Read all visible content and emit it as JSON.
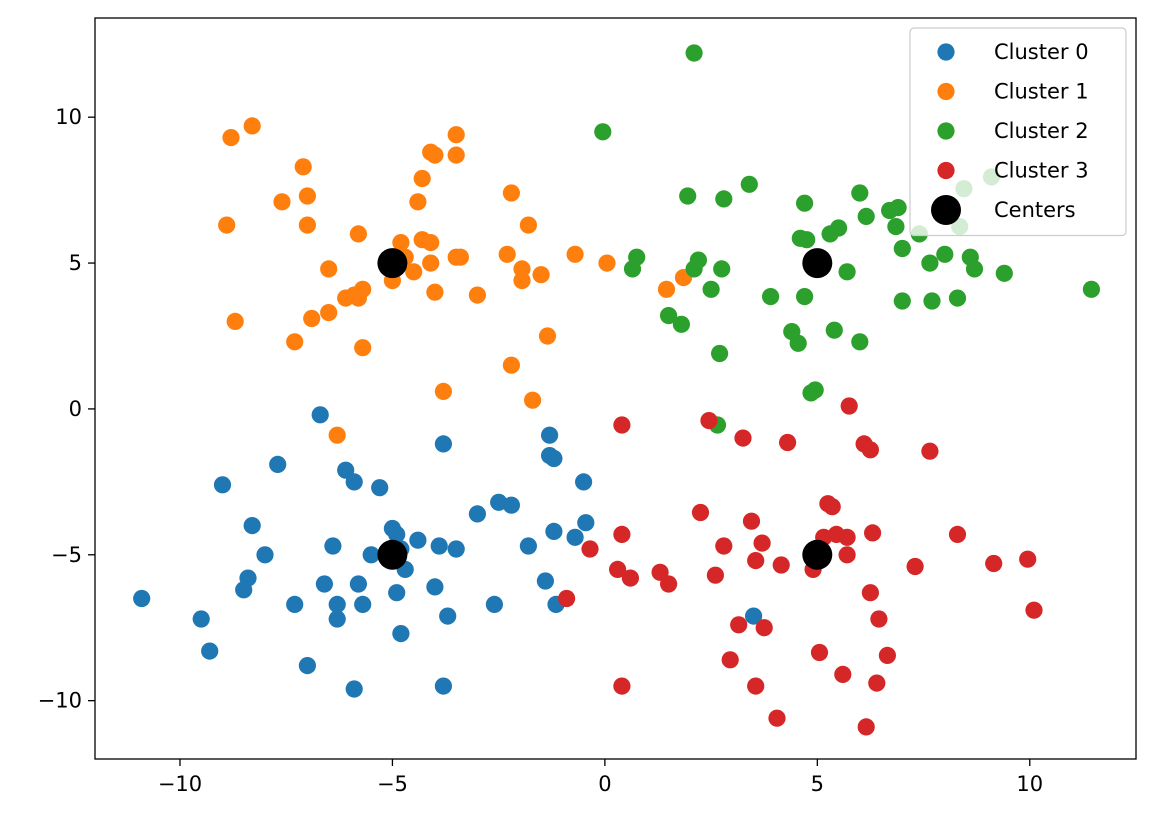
{
  "chart_data": {
    "type": "scatter",
    "title": "",
    "xlabel": "",
    "ylabel": "",
    "xlim": [
      -12.0,
      12.5
    ],
    "ylim": [
      -12.0,
      13.4
    ],
    "xticks": [
      -10,
      -5,
      0,
      5,
      10
    ],
    "yticks": [
      -10,
      -5,
      0,
      5,
      10
    ],
    "xtick_labels": [
      "−10",
      "−5",
      "0",
      "5",
      "10"
    ],
    "ytick_labels": [
      "−10",
      "−5",
      "0",
      "5",
      "10"
    ],
    "grid": false,
    "legend_position": "upper right",
    "series": [
      {
        "name": "Cluster 0",
        "color": "#1f77b4",
        "points": [
          [
            -10.9,
            -6.5
          ],
          [
            -9.5,
            -7.2
          ],
          [
            -9.3,
            -8.3
          ],
          [
            -9.0,
            -2.6
          ],
          [
            -8.3,
            -4.0
          ],
          [
            -8.0,
            -5.0
          ],
          [
            -8.4,
            -5.8
          ],
          [
            -8.5,
            -6.2
          ],
          [
            -7.7,
            -1.9
          ],
          [
            -7.3,
            -6.7
          ],
          [
            -7.0,
            -8.8
          ],
          [
            -6.7,
            -0.2
          ],
          [
            -6.6,
            -6.0
          ],
          [
            -6.4,
            -4.7
          ],
          [
            -6.3,
            -6.7
          ],
          [
            -6.3,
            -7.2
          ],
          [
            -6.1,
            -2.1
          ],
          [
            -5.9,
            -2.5
          ],
          [
            -5.8,
            -6.0
          ],
          [
            -5.7,
            -6.7
          ],
          [
            -5.5,
            -5.0
          ],
          [
            -5.9,
            -9.6
          ],
          [
            -5.3,
            -2.7
          ],
          [
            -5.0,
            -4.1
          ],
          [
            -4.9,
            -4.3
          ],
          [
            -4.8,
            -4.8
          ],
          [
            -4.9,
            -6.3
          ],
          [
            -4.8,
            -7.7
          ],
          [
            -4.7,
            -5.5
          ],
          [
            -4.4,
            -4.5
          ],
          [
            -4.0,
            -6.1
          ],
          [
            -3.9,
            -4.7
          ],
          [
            -3.8,
            -1.2
          ],
          [
            -3.7,
            -7.1
          ],
          [
            -3.8,
            -9.5
          ],
          [
            -3.5,
            -4.8
          ],
          [
            -3.0,
            -3.6
          ],
          [
            -2.6,
            -6.7
          ],
          [
            -2.5,
            -3.2
          ],
          [
            -2.2,
            -3.3
          ],
          [
            -1.8,
            -4.7
          ],
          [
            -1.4,
            -5.9
          ],
          [
            -1.3,
            -0.9
          ],
          [
            -1.3,
            -1.6
          ],
          [
            -1.2,
            -1.7
          ],
          [
            -1.2,
            -4.2
          ],
          [
            -1.15,
            -6.7
          ],
          [
            -0.7,
            -4.4
          ],
          [
            -0.5,
            -2.5
          ],
          [
            -0.45,
            -3.9
          ],
          [
            3.5,
            -7.1
          ]
        ]
      },
      {
        "name": "Cluster 1",
        "color": "#ff7f0e",
        "points": [
          [
            -8.9,
            6.3
          ],
          [
            -8.8,
            9.3
          ],
          [
            -8.7,
            3.0
          ],
          [
            -8.3,
            9.7
          ],
          [
            -7.6,
            7.1
          ],
          [
            -7.3,
            2.3
          ],
          [
            -7.1,
            8.3
          ],
          [
            -7.0,
            7.3
          ],
          [
            -7.0,
            6.3
          ],
          [
            -6.9,
            3.1
          ],
          [
            -6.5,
            4.8
          ],
          [
            -6.5,
            3.3
          ],
          [
            -6.3,
            -0.9
          ],
          [
            -6.1,
            3.8
          ],
          [
            -5.9,
            3.9
          ],
          [
            -5.8,
            3.8
          ],
          [
            -5.8,
            6.0
          ],
          [
            -5.7,
            4.1
          ],
          [
            -5.7,
            2.1
          ],
          [
            -5.0,
            4.4
          ],
          [
            -4.8,
            5.7
          ],
          [
            -4.7,
            5.2
          ],
          [
            -4.5,
            4.7
          ],
          [
            -4.4,
            7.1
          ],
          [
            -4.3,
            7.9
          ],
          [
            -4.3,
            5.8
          ],
          [
            -4.1,
            5.7
          ],
          [
            -4.1,
            5.0
          ],
          [
            -4.1,
            8.8
          ],
          [
            -4.0,
            8.7
          ],
          [
            -4.0,
            4.0
          ],
          [
            -3.8,
            0.6
          ],
          [
            -3.5,
            9.4
          ],
          [
            -3.5,
            8.7
          ],
          [
            -3.5,
            5.2
          ],
          [
            -3.4,
            5.2
          ],
          [
            -3.0,
            3.9
          ],
          [
            -2.3,
            5.3
          ],
          [
            -2.2,
            7.4
          ],
          [
            -2.2,
            1.5
          ],
          [
            -1.95,
            4.8
          ],
          [
            -1.95,
            4.4
          ],
          [
            -1.8,
            6.3
          ],
          [
            -1.7,
            0.3
          ],
          [
            -1.5,
            4.6
          ],
          [
            -1.35,
            2.5
          ],
          [
            -0.7,
            5.3
          ],
          [
            0.05,
            5.0
          ],
          [
            1.45,
            4.1
          ],
          [
            1.85,
            4.5
          ]
        ]
      },
      {
        "name": "Cluster 2",
        "color": "#2ca02c",
        "points": [
          [
            -0.05,
            9.5
          ],
          [
            0.65,
            4.8
          ],
          [
            0.75,
            5.2
          ],
          [
            1.5,
            3.2
          ],
          [
            1.8,
            2.9
          ],
          [
            1.95,
            7.3
          ],
          [
            2.1,
            12.2
          ],
          [
            2.1,
            4.8
          ],
          [
            2.2,
            5.1
          ],
          [
            2.5,
            4.1
          ],
          [
            2.65,
            -0.55
          ],
          [
            2.7,
            1.9
          ],
          [
            2.75,
            4.8
          ],
          [
            2.8,
            7.2
          ],
          [
            3.4,
            7.7
          ],
          [
            3.9,
            3.85
          ],
          [
            4.4,
            2.65
          ],
          [
            4.55,
            2.25
          ],
          [
            4.6,
            5.85
          ],
          [
            4.7,
            3.85
          ],
          [
            4.7,
            7.05
          ],
          [
            4.75,
            5.8
          ],
          [
            4.85,
            0.55
          ],
          [
            4.95,
            0.65
          ],
          [
            5.3,
            6.0
          ],
          [
            5.4,
            2.7
          ],
          [
            5.5,
            6.2
          ],
          [
            5.7,
            4.7
          ],
          [
            6.0,
            7.4
          ],
          [
            6.0,
            2.3
          ],
          [
            6.15,
            6.6
          ],
          [
            6.7,
            6.8
          ],
          [
            6.85,
            6.25
          ],
          [
            6.9,
            6.9
          ],
          [
            7.0,
            5.5
          ],
          [
            7.0,
            3.7
          ],
          [
            7.4,
            6.0
          ],
          [
            7.65,
            5.0
          ],
          [
            7.7,
            3.7
          ],
          [
            8.0,
            5.3
          ],
          [
            8.3,
            3.8
          ],
          [
            8.35,
            6.25
          ],
          [
            8.45,
            7.55
          ],
          [
            8.6,
            5.2
          ],
          [
            8.7,
            4.8
          ],
          [
            9.1,
            7.95
          ],
          [
            9.4,
            4.65
          ],
          [
            11.45,
            4.1
          ]
        ]
      },
      {
        "name": "Cluster 3",
        "color": "#d62728",
        "points": [
          [
            -0.9,
            -6.5
          ],
          [
            -0.35,
            -4.8
          ],
          [
            0.3,
            -5.5
          ],
          [
            0.4,
            -4.3
          ],
          [
            0.4,
            -0.55
          ],
          [
            0.4,
            -9.5
          ],
          [
            0.6,
            -5.8
          ],
          [
            1.3,
            -5.6
          ],
          [
            1.5,
            -6.0
          ],
          [
            2.25,
            -3.55
          ],
          [
            2.45,
            -0.4
          ],
          [
            2.6,
            -5.7
          ],
          [
            2.8,
            -4.7
          ],
          [
            2.95,
            -8.6
          ],
          [
            3.15,
            -7.4
          ],
          [
            3.25,
            -1.0
          ],
          [
            3.45,
            -3.85
          ],
          [
            3.55,
            -5.2
          ],
          [
            3.55,
            -9.5
          ],
          [
            3.7,
            -4.6
          ],
          [
            3.75,
            -7.5
          ],
          [
            4.05,
            -10.6
          ],
          [
            4.15,
            -5.35
          ],
          [
            4.3,
            -1.15
          ],
          [
            4.9,
            -5.5
          ],
          [
            5.0,
            -5.0
          ],
          [
            5.05,
            -8.35
          ],
          [
            5.15,
            -4.4
          ],
          [
            5.25,
            -3.25
          ],
          [
            5.35,
            -3.35
          ],
          [
            5.45,
            -4.3
          ],
          [
            5.6,
            -9.1
          ],
          [
            5.7,
            -5.0
          ],
          [
            5.7,
            -4.4
          ],
          [
            5.75,
            0.1
          ],
          [
            6.1,
            -1.2
          ],
          [
            6.15,
            -10.9
          ],
          [
            6.25,
            -6.3
          ],
          [
            6.25,
            -1.4
          ],
          [
            6.3,
            -4.25
          ],
          [
            6.4,
            -9.4
          ],
          [
            6.45,
            -7.2
          ],
          [
            6.65,
            -8.45
          ],
          [
            7.3,
            -5.4
          ],
          [
            7.65,
            -1.45
          ],
          [
            8.3,
            -4.3
          ],
          [
            9.15,
            -5.3
          ],
          [
            9.95,
            -5.15
          ],
          [
            10.1,
            -6.9
          ]
        ]
      },
      {
        "name": "Centers",
        "color": "#000000",
        "points": [
          [
            -5,
            5
          ],
          [
            5,
            5
          ],
          [
            -5,
            -5
          ],
          [
            5,
            -5
          ]
        ]
      }
    ]
  }
}
